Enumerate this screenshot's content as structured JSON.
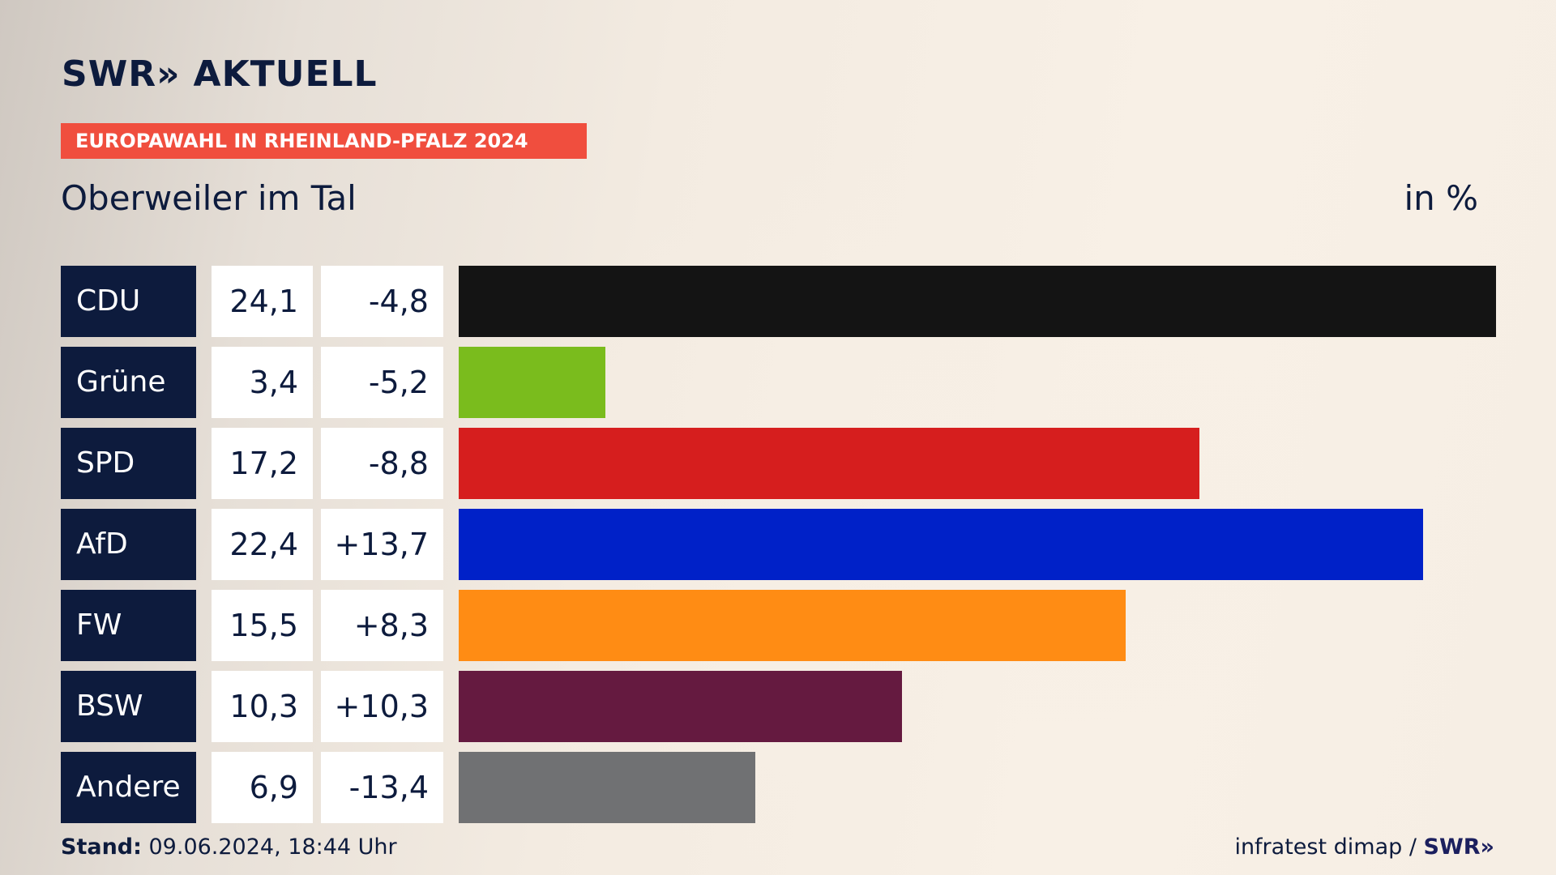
{
  "header": {
    "logo_text": "SWR",
    "logo_chevrons": "»",
    "logo_word": "AKTUELL",
    "banner": "EUROPAWAHL IN RHEINLAND-PFALZ 2024",
    "place": "Oberweiler im Tal",
    "unit": "in %"
  },
  "footer": {
    "stand_label": "Stand:",
    "stand_value": " 09.06.2024, 18:44 Uhr",
    "source": "infratest dimap / ",
    "source_brand": "SWR»"
  },
  "chart_data": {
    "type": "bar",
    "orientation": "horizontal",
    "categories": [
      "CDU",
      "Grüne",
      "SPD",
      "AfD",
      "FW",
      "BSW",
      "Andere"
    ],
    "values": [
      24.1,
      3.4,
      17.2,
      22.4,
      15.5,
      10.3,
      6.9
    ],
    "value_labels": [
      "24,1",
      "3,4",
      "17,2",
      "22,4",
      "15,5",
      "10,3",
      "6,9"
    ],
    "diff_labels": [
      "-4,8",
      "-5,2",
      "-8,8",
      "+13,7",
      "+8,3",
      "+10,3",
      "-13,4"
    ],
    "colors": [
      "#141414",
      "#7abc1d",
      "#d61e1e",
      "#0021c8",
      "#ff8c14",
      "#651a40",
      "#707173"
    ],
    "xlim": [
      0,
      24.1
    ],
    "grid": false,
    "legend": "none"
  }
}
